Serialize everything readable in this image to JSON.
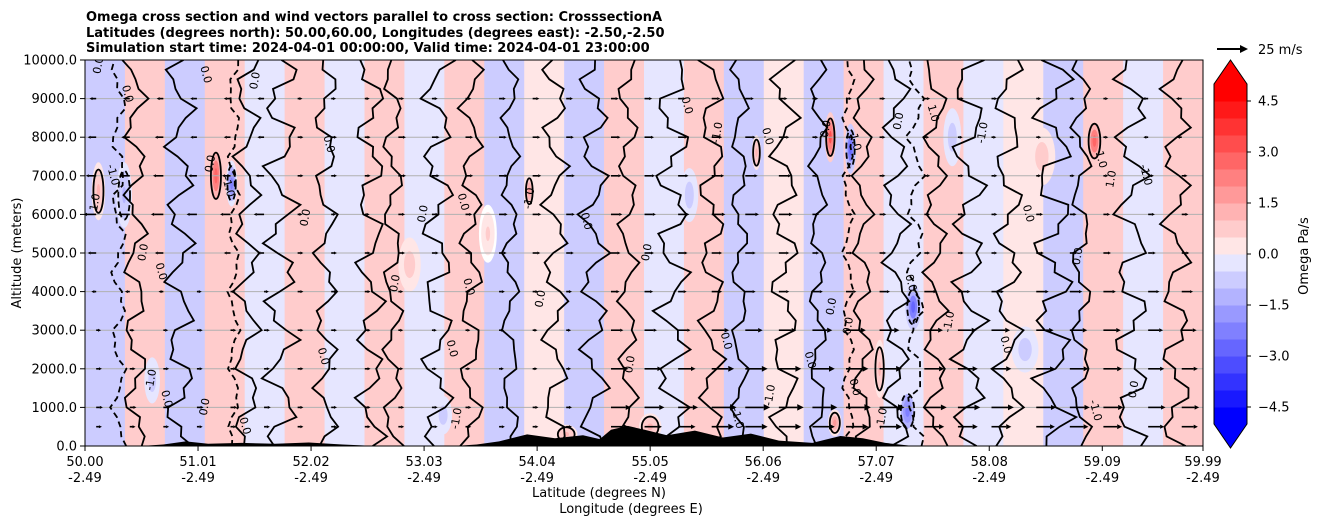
{
  "chart_data": {
    "type": "heatmap",
    "title_lines": [
      "Omega cross section and wind vectors parallel to cross section: CrosssectionA",
      "Latitudes (degrees north): 50.00,60.00, Longitudes (degrees east): -2.50,-2.50",
      "Simulation start time: 2024-04-01 00:00:00, Valid time: 2024-04-01 23:00:00"
    ],
    "ylabel": "Altitude (meters)",
    "xlabel_lines": [
      "Latitude (degrees N)",
      "Longitude (degrees E)"
    ],
    "ylim": [
      0,
      10000
    ],
    "xlim": [
      50.0,
      59.99
    ],
    "y_ticks": [
      {
        "value": 0,
        "label": "0.0"
      },
      {
        "value": 1000,
        "label": "1000.0"
      },
      {
        "value": 2000,
        "label": "2000.0"
      },
      {
        "value": 3000,
        "label": "3000.0"
      },
      {
        "value": 4000,
        "label": "4000.0"
      },
      {
        "value": 5000,
        "label": "5000.0"
      },
      {
        "value": 6000,
        "label": "6000.0"
      },
      {
        "value": 7000,
        "label": "7000.0"
      },
      {
        "value": 8000,
        "label": "8000.0"
      },
      {
        "value": 9000,
        "label": "9000.0"
      },
      {
        "value": 10000,
        "label": "10000.0"
      }
    ],
    "x_ticks": [
      {
        "lat": 50.0,
        "label": "50.00",
        "lon_label": "-2.49"
      },
      {
        "lat": 51.01,
        "label": "51.01",
        "lon_label": "-2.49"
      },
      {
        "lat": 52.02,
        "label": "52.02",
        "lon_label": "-2.49"
      },
      {
        "lat": 53.03,
        "label": "53.03",
        "lon_label": "-2.49"
      },
      {
        "lat": 54.04,
        "label": "54.04",
        "lon_label": "-2.49"
      },
      {
        "lat": 55.05,
        "label": "55.05",
        "lon_label": "-2.49"
      },
      {
        "lat": 56.06,
        "label": "56.06",
        "lon_label": "-2.49"
      },
      {
        "lat": 57.07,
        "label": "57.07",
        "lon_label": "-2.49"
      },
      {
        "lat": 58.08,
        "label": "58.08",
        "lon_label": "-2.49"
      },
      {
        "lat": 59.09,
        "label": "59.09",
        "lon_label": "-2.49"
      },
      {
        "lat": 59.99,
        "label": "59.99",
        "lon_label": "-2.49"
      }
    ],
    "colorbar": {
      "label": "Omega Pa/s",
      "min": -5.0,
      "max": 5.0,
      "levels": [
        -5.0,
        -4.5,
        -4.0,
        -3.5,
        -3.0,
        -2.5,
        -2.0,
        -1.5,
        -1.0,
        -0.5,
        0.0,
        0.5,
        1.0,
        1.5,
        2.0,
        2.5,
        3.0,
        3.5,
        4.0,
        4.5,
        5.0
      ],
      "ticks": [
        {
          "value": 4.5,
          "label": "4.5"
        },
        {
          "value": 3.0,
          "label": "3.0"
        },
        {
          "value": 1.5,
          "label": "1.5"
        },
        {
          "value": 0.0,
          "label": "0.0"
        },
        {
          "value": -1.5,
          "label": "−1.5"
        },
        {
          "value": -3.0,
          "label": "−3.0"
        },
        {
          "value": -4.5,
          "label": "−4.5"
        }
      ],
      "colors": {
        "positive": "#ff0000",
        "negative": "#0000ff",
        "neutral": "#ffffff"
      }
    },
    "quiver_key": {
      "label": "25 m/s",
      "speed": 25
    },
    "contour_levels": [
      -1.0,
      0.0,
      1.0
    ],
    "contour_labels": [
      "0.0",
      "1.0",
      "-1.0"
    ],
    "omega_features": [
      {
        "lat": 51.17,
        "alt": 7000,
        "value": 3.0,
        "w": 0.06,
        "h": 1600
      },
      {
        "lat": 51.31,
        "alt": 6800,
        "value": -2.5,
        "w": 0.05,
        "h": 1200
      },
      {
        "lat": 50.12,
        "alt": 6600,
        "value": 1.5,
        "w": 0.06,
        "h": 1500
      },
      {
        "lat": 50.35,
        "alt": 6500,
        "value": -1.5,
        "w": 0.07,
        "h": 1700
      },
      {
        "lat": 53.97,
        "alt": 6600,
        "value": 2.0,
        "w": 0.04,
        "h": 900
      },
      {
        "lat": 56.0,
        "alt": 7600,
        "value": 1.5,
        "w": 0.04,
        "h": 900
      },
      {
        "lat": 56.66,
        "alt": 8000,
        "value": 3.5,
        "w": 0.05,
        "h": 1300
      },
      {
        "lat": 56.84,
        "alt": 7700,
        "value": -3.0,
        "w": 0.05,
        "h": 1300
      },
      {
        "lat": 57.4,
        "alt": 3600,
        "value": -3.0,
        "w": 0.07,
        "h": 1200
      },
      {
        "lat": 57.35,
        "alt": 900,
        "value": -2.5,
        "w": 0.08,
        "h": 1200
      },
      {
        "lat": 56.7,
        "alt": 600,
        "value": 2.0,
        "w": 0.06,
        "h": 700
      },
      {
        "lat": 57.1,
        "alt": 2000,
        "value": 1.5,
        "w": 0.05,
        "h": 1500
      },
      {
        "lat": 59.02,
        "alt": 7900,
        "value": 3.0,
        "w": 0.07,
        "h": 1200
      },
      {
        "lat": 58.55,
        "alt": 7500,
        "value": 1.0,
        "w": 0.12,
        "h": 1500
      },
      {
        "lat": 55.4,
        "alt": 6500,
        "value": -1.0,
        "w": 0.08,
        "h": 1400
      },
      {
        "lat": 55.05,
        "alt": 500,
        "value": 1.5,
        "w": 0.1,
        "h": 700
      },
      {
        "lat": 54.3,
        "alt": 300,
        "value": 1.5,
        "w": 0.1,
        "h": 500
      },
      {
        "lat": 52.9,
        "alt": 4700,
        "value": 1.0,
        "w": 0.1,
        "h": 1400
      },
      {
        "lat": 53.6,
        "alt": 5500,
        "value": 0.8,
        "w": 0.08,
        "h": 1500
      },
      {
        "lat": 58.4,
        "alt": 2500,
        "value": -1.0,
        "w": 0.12,
        "h": 1200
      },
      {
        "lat": 57.75,
        "alt": 8000,
        "value": -1.0,
        "w": 0.08,
        "h": 1500
      },
      {
        "lat": 50.6,
        "alt": 1700,
        "value": -1.0,
        "w": 0.07,
        "h": 1200
      },
      {
        "lat": 53.2,
        "alt": 800,
        "value": -1.0,
        "w": 0.08,
        "h": 1000
      }
    ],
    "terrain": [
      {
        "lat": 50.0,
        "alt": 0
      },
      {
        "lat": 50.5,
        "alt": 0
      },
      {
        "lat": 50.7,
        "alt": 40
      },
      {
        "lat": 50.9,
        "alt": 120
      },
      {
        "lat": 51.1,
        "alt": 60
      },
      {
        "lat": 51.4,
        "alt": 80
      },
      {
        "lat": 51.7,
        "alt": 60
      },
      {
        "lat": 52.0,
        "alt": 90
      },
      {
        "lat": 52.3,
        "alt": 40
      },
      {
        "lat": 52.6,
        "alt": 0
      },
      {
        "lat": 53.3,
        "alt": 0
      },
      {
        "lat": 53.5,
        "alt": 40
      },
      {
        "lat": 53.7,
        "alt": 120
      },
      {
        "lat": 53.95,
        "alt": 300
      },
      {
        "lat": 54.2,
        "alt": 200
      },
      {
        "lat": 54.45,
        "alt": 280
      },
      {
        "lat": 54.6,
        "alt": 180
      },
      {
        "lat": 54.7,
        "alt": 420
      },
      {
        "lat": 54.85,
        "alt": 520
      },
      {
        "lat": 55.0,
        "alt": 420
      },
      {
        "lat": 55.2,
        "alt": 280
      },
      {
        "lat": 55.45,
        "alt": 400
      },
      {
        "lat": 55.7,
        "alt": 220
      },
      {
        "lat": 55.95,
        "alt": 320
      },
      {
        "lat": 56.2,
        "alt": 140
      },
      {
        "lat": 56.5,
        "alt": 80
      },
      {
        "lat": 56.75,
        "alt": 260
      },
      {
        "lat": 56.95,
        "alt": 200
      },
      {
        "lat": 57.15,
        "alt": 80
      },
      {
        "lat": 57.4,
        "alt": 0
      },
      {
        "lat": 59.99,
        "alt": 0
      }
    ],
    "wind_rows": [
      {
        "alt": 9000,
        "u": [
          -4,
          -4,
          2,
          3,
          4,
          5,
          6,
          3,
          3,
          2,
          -3
        ]
      },
      {
        "alt": 8000,
        "u": [
          -6,
          -4,
          3,
          5,
          5,
          7,
          8,
          3,
          2,
          2,
          -2
        ]
      },
      {
        "alt": 7000,
        "u": [
          -8,
          -6,
          3,
          5,
          6,
          8,
          10,
          3,
          3,
          2,
          3
        ]
      },
      {
        "alt": 6000,
        "u": [
          -10,
          -8,
          2,
          4,
          6,
          9,
          11,
          4,
          3,
          4,
          4
        ]
      },
      {
        "alt": 5000,
        "u": [
          -6,
          -4,
          3,
          4,
          5,
          7,
          8,
          4,
          3,
          5,
          5
        ]
      },
      {
        "alt": 4000,
        "u": [
          -2,
          2,
          3,
          2,
          3,
          6,
          8,
          8,
          10,
          10,
          9
        ]
      },
      {
        "alt": 3000,
        "u": [
          2,
          3,
          3,
          2,
          2,
          10,
          14,
          16,
          15,
          14,
          12
        ]
      },
      {
        "alt": 2000,
        "u": [
          3,
          3,
          3,
          2,
          2,
          14,
          18,
          18,
          16,
          15,
          13
        ]
      },
      {
        "alt": 1000,
        "u": [
          4,
          4,
          3,
          3,
          3,
          16,
          20,
          20,
          18,
          16,
          14
        ]
      },
      {
        "alt": 500,
        "u": [
          3,
          3,
          3,
          3,
          3,
          14,
          18,
          18,
          16,
          15,
          13
        ]
      }
    ],
    "wind_lats": [
      50.1,
      51.0,
      51.9,
      52.8,
      53.7,
      54.7,
      55.6,
      56.5,
      57.5,
      58.5,
      59.5
    ],
    "contours_solid": [
      {
        "lat": 50.45,
        "amp": 0.08
      },
      {
        "lat": 50.85,
        "amp": 0.1
      },
      {
        "lat": 51.45,
        "amp": 0.09
      },
      {
        "lat": 51.75,
        "amp": 0.12
      },
      {
        "lat": 52.15,
        "amp": 0.08
      },
      {
        "lat": 52.55,
        "amp": 0.1
      },
      {
        "lat": 52.75,
        "amp": 0.07
      },
      {
        "lat": 53.15,
        "amp": 0.11
      },
      {
        "lat": 53.45,
        "amp": 0.08
      },
      {
        "lat": 53.8,
        "amp": 0.06
      },
      {
        "lat": 54.2,
        "amp": 0.09
      },
      {
        "lat": 54.55,
        "amp": 0.1
      },
      {
        "lat": 54.85,
        "amp": 0.07
      },
      {
        "lat": 55.25,
        "amp": 0.12
      },
      {
        "lat": 55.6,
        "amp": 0.09
      },
      {
        "lat": 55.85,
        "amp": 0.06
      },
      {
        "lat": 56.25,
        "amp": 0.1
      },
      {
        "lat": 56.55,
        "amp": 0.06
      },
      {
        "lat": 56.95,
        "amp": 0.07
      },
      {
        "lat": 57.25,
        "amp": 0.09
      },
      {
        "lat": 57.6,
        "amp": 0.08
      },
      {
        "lat": 57.9,
        "amp": 0.12
      },
      {
        "lat": 58.25,
        "amp": 0.1
      },
      {
        "lat": 58.65,
        "amp": 0.14
      },
      {
        "lat": 58.9,
        "amp": 0.07
      },
      {
        "lat": 59.35,
        "amp": 0.12
      },
      {
        "lat": 59.75,
        "amp": 0.1
      }
    ],
    "contours_dashed": [
      {
        "lat": 50.3,
        "amp": 0.05
      },
      {
        "lat": 51.33,
        "amp": 0.04
      },
      {
        "lat": 56.82,
        "amp": 0.04
      },
      {
        "lat": 57.42,
        "amp": 0.06
      }
    ],
    "contour_label_positions": [
      {
        "lat": 50.15,
        "alt": 9850,
        "text": "0.0"
      },
      {
        "lat": 51.05,
        "alt": 9600,
        "text": "0.0"
      },
      {
        "lat": 51.55,
        "alt": 9450,
        "text": "0.0"
      },
      {
        "lat": 50.35,
        "alt": 9100,
        "text": "0.0"
      },
      {
        "lat": 51.15,
        "alt": 7300,
        "text": "0.0"
      },
      {
        "lat": 51.25,
        "alt": 6700,
        "text": "-1.0"
      },
      {
        "lat": 50.12,
        "alt": 6300,
        "text": "1.0"
      },
      {
        "lat": 50.22,
        "alt": 7000,
        "text": "-1.0"
      },
      {
        "lat": 52.0,
        "alt": 5900,
        "text": "0.0"
      },
      {
        "lat": 52.15,
        "alt": 7800,
        "text": "0.0"
      },
      {
        "lat": 53.05,
        "alt": 6000,
        "text": "0.0"
      },
      {
        "lat": 53.35,
        "alt": 6300,
        "text": "0.0"
      },
      {
        "lat": 54.0,
        "alt": 6400,
        "text": "-1.0"
      },
      {
        "lat": 54.45,
        "alt": 5800,
        "text": "0.0"
      },
      {
        "lat": 55.05,
        "alt": 5000,
        "text": "0.0"
      },
      {
        "lat": 55.35,
        "alt": 8800,
        "text": "0.0"
      },
      {
        "lat": 55.68,
        "alt": 8100,
        "text": "-1.0"
      },
      {
        "lat": 56.07,
        "alt": 8000,
        "text": "0.0"
      },
      {
        "lat": 56.65,
        "alt": 8200,
        "text": "0.0"
      },
      {
        "lat": 56.85,
        "alt": 7900,
        "text": "-1.0"
      },
      {
        "lat": 57.3,
        "alt": 8400,
        "text": "0.0"
      },
      {
        "lat": 57.55,
        "alt": 8600,
        "text": "1.0"
      },
      {
        "lat": 58.05,
        "alt": 8100,
        "text": "-1.0"
      },
      {
        "lat": 59.05,
        "alt": 7400,
        "text": "1.0"
      },
      {
        "lat": 59.2,
        "alt": 6900,
        "text": "1.0"
      },
      {
        "lat": 59.45,
        "alt": 7000,
        "text": "-1.0"
      },
      {
        "lat": 59.4,
        "alt": 1450,
        "text": "0.0"
      },
      {
        "lat": 59.0,
        "alt": 900,
        "text": "-1.0"
      },
      {
        "lat": 57.75,
        "alt": 3200,
        "text": "-1.0"
      },
      {
        "lat": 57.35,
        "alt": 4200,
        "text": "0.0"
      },
      {
        "lat": 56.85,
        "alt": 3100,
        "text": "0.0"
      },
      {
        "lat": 56.85,
        "alt": 1500,
        "text": "0.0"
      },
      {
        "lat": 57.15,
        "alt": 700,
        "text": "-1.0"
      },
      {
        "lat": 56.45,
        "alt": 2200,
        "text": "0.0"
      },
      {
        "lat": 54.1,
        "alt": 3800,
        "text": "0.0"
      },
      {
        "lat": 53.4,
        "alt": 4100,
        "text": "0.0"
      },
      {
        "lat": 52.8,
        "alt": 4200,
        "text": "0.0"
      },
      {
        "lat": 50.65,
        "alt": 4500,
        "text": "0.0"
      },
      {
        "lat": 50.55,
        "alt": 5000,
        "text": "0.0"
      },
      {
        "lat": 52.1,
        "alt": 2300,
        "text": "0.0"
      },
      {
        "lat": 50.62,
        "alt": 1700,
        "text": "-1.0"
      },
      {
        "lat": 50.7,
        "alt": 1200,
        "text": "0.0"
      },
      {
        "lat": 51.1,
        "alt": 1000,
        "text": "0.0"
      },
      {
        "lat": 51.4,
        "alt": 500,
        "text": "0.0"
      },
      {
        "lat": 53.35,
        "alt": 700,
        "text": "-1.0"
      },
      {
        "lat": 55.8,
        "alt": 700,
        "text": "-1.0"
      },
      {
        "lat": 56.15,
        "alt": 1300,
        "text": "-1.0"
      },
      {
        "lat": 58.2,
        "alt": 2600,
        "text": "0.0"
      },
      {
        "lat": 58.9,
        "alt": 4900,
        "text": "0.0"
      },
      {
        "lat": 58.4,
        "alt": 6000,
        "text": "0.0"
      },
      {
        "lat": 56.7,
        "alt": 3600,
        "text": "0.0"
      },
      {
        "lat": 55.7,
        "alt": 2700,
        "text": "0.0"
      },
      {
        "lat": 54.9,
        "alt": 2100,
        "text": "0.0"
      },
      {
        "lat": 53.25,
        "alt": 2500,
        "text": "0.0"
      }
    ]
  }
}
